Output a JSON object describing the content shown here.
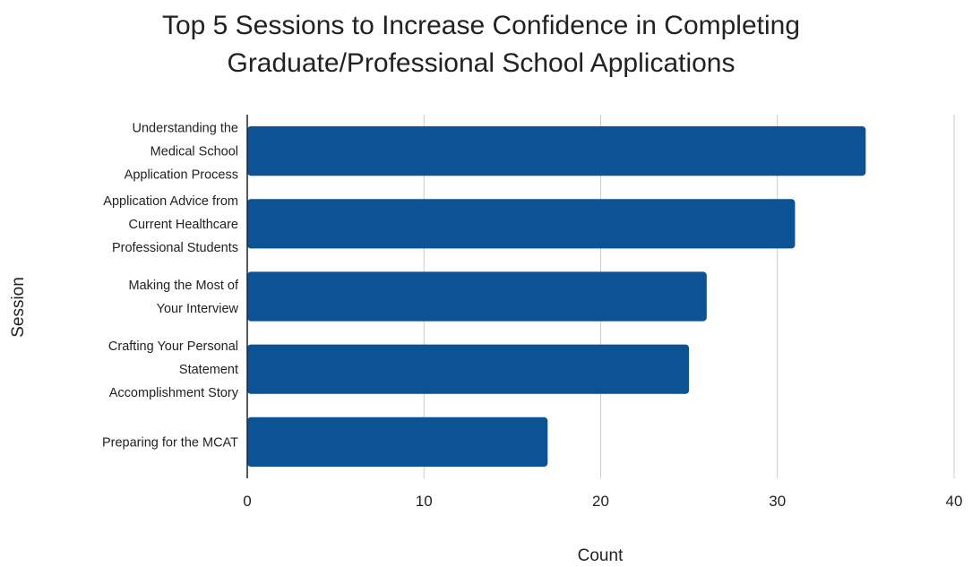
{
  "chart_data": {
    "type": "bar",
    "orientation": "horizontal",
    "title": [
      "Top 5 Sessions to Increase Confidence in Completing",
      "Graduate/Professional School Applications"
    ],
    "xlabel": "Count",
    "ylabel": "Session",
    "xlim": [
      0,
      40
    ],
    "xticks": [
      "0",
      "10",
      "20",
      "30",
      "40"
    ],
    "grid": "vertical",
    "legend": "none",
    "bar_color": "#0b5394",
    "categories": [
      [
        "Understanding the",
        "Medical School",
        "Application Process"
      ],
      [
        "Application Advice from",
        "Current Healthcare",
        "Professional Students"
      ],
      [
        "Making the Most of",
        "Your Interview"
      ],
      [
        "Crafting Your Personal",
        "Statement",
        "Accomplishment Story"
      ],
      [
        "Preparing for the MCAT"
      ]
    ],
    "values": [
      35,
      31,
      26,
      25,
      17
    ]
  }
}
